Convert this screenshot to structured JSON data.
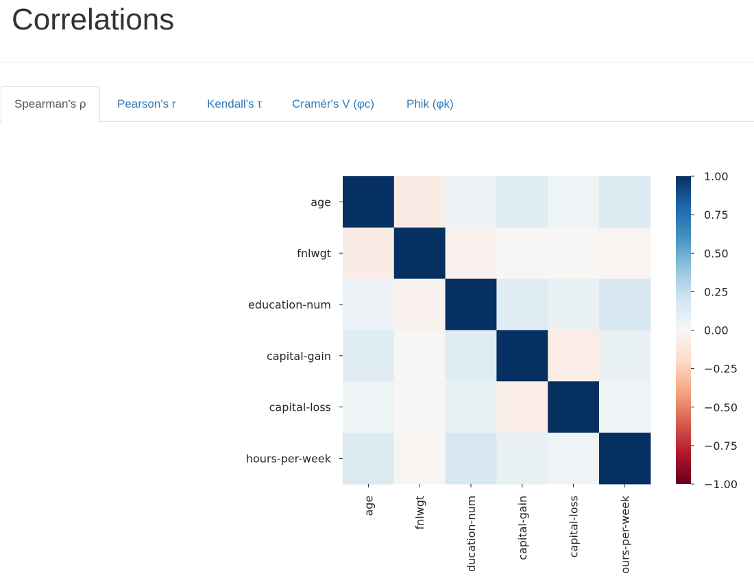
{
  "page": {
    "title": "Correlations"
  },
  "tabs": [
    {
      "label": "Spearman's ρ",
      "active": true
    },
    {
      "label": "Pearson's r",
      "active": false
    },
    {
      "label": "Kendall's τ",
      "active": false
    },
    {
      "label": "Cramér's V (φc)",
      "active": false
    },
    {
      "label": "Phik (φk)",
      "active": false
    }
  ],
  "chart_data": {
    "type": "heatmap",
    "variables": [
      "age",
      "fnlwgt",
      "education-num",
      "capital-gain",
      "capital-loss",
      "hours-per-week"
    ],
    "x_tick_labels": [
      "age",
      "fnlwgt",
      "ducation-num",
      "capital-gain",
      "capital-loss",
      "ours-per-week"
    ],
    "y_tick_labels": [
      "age",
      "fnlwgt",
      "education-num",
      "capital-gain",
      "capital-loss",
      "hours-per-week"
    ],
    "matrix": [
      [
        1.0,
        -0.08,
        0.06,
        0.12,
        0.05,
        0.14
      ],
      [
        -0.08,
        1.0,
        -0.04,
        -0.01,
        -0.01,
        -0.02
      ],
      [
        0.06,
        -0.04,
        1.0,
        0.12,
        0.07,
        0.17
      ],
      [
        0.12,
        -0.01,
        0.12,
        1.0,
        -0.07,
        0.08
      ],
      [
        0.05,
        -0.01,
        0.07,
        -0.07,
        1.0,
        0.05
      ],
      [
        0.14,
        -0.02,
        0.17,
        0.08,
        0.05,
        1.0
      ]
    ],
    "colorbar": {
      "min": -1.0,
      "max": 1.0,
      "tick_values": [
        1.0,
        0.75,
        0.5,
        0.25,
        0.0,
        -0.25,
        -0.5,
        -0.75,
        -1.0
      ],
      "tick_labels": [
        "1.00",
        "0.75",
        "0.50",
        "0.25",
        "0.00",
        "−0.25",
        "−0.50",
        "−0.75",
        "−1.00"
      ],
      "colormap": "RdBu"
    },
    "colors": {
      "stops": [
        "#67001f",
        "#b2182b",
        "#d6604d",
        "#f4a582",
        "#fddbc7",
        "#f7f7f7",
        "#d1e5f0",
        "#92c5de",
        "#4393c3",
        "#2166ac",
        "#053061"
      ]
    }
  }
}
